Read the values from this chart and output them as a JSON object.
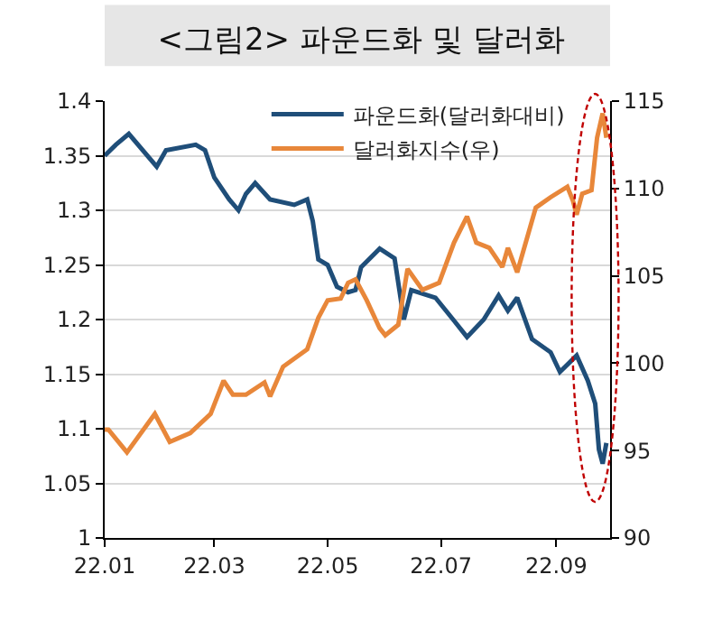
{
  "chart_data": {
    "type": "line",
    "title": "<그림2> 파운드화 및 달러화",
    "xlim": [
      "--01-01",
      "--09-30"
    ],
    "xticks": [
      {
        "value": "--01-01",
        "label": "22.01"
      },
      {
        "value": "--03-01",
        "label": "22.03"
      },
      {
        "value": "--05-01",
        "label": "22.05"
      },
      {
        "value": "--07-01",
        "label": "22.07"
      },
      {
        "value": "--09-01",
        "label": "22.09"
      }
    ],
    "ylim": [
      1,
      1.4
    ],
    "yticks": [
      1,
      1.05,
      1.1,
      1.15,
      1.2,
      1.25,
      1.3,
      1.35,
      1.4
    ],
    "y2lim": [
      90,
      115
    ],
    "y2ticks": [
      90,
      95,
      100,
      105,
      110,
      115
    ],
    "grid": "y",
    "legend": "top right",
    "marker": "none",
    "line_style": "solid",
    "series": [
      {
        "name": "파운드화(달러화대비)",
        "color": "#1f4e79",
        "x": [
          "--01-01",
          "--01-07",
          "--01-14",
          "--01-29",
          "--02-03",
          "--02-19",
          "--02-24",
          "--03-01",
          "--03-09",
          "--03-14",
          "--03-18",
          "--03-23",
          "--03-31",
          "--04-13",
          "--04-20",
          "--04-23",
          "--04-26",
          "--05-01",
          "--05-06",
          "--05-12",
          "--05-16",
          "--05-19",
          "--05-29",
          "--06-06",
          "--06-11",
          "--06-15",
          "--06-28",
          "--07-08",
          "--07-15",
          "--07-24",
          "--08-01",
          "--08-06",
          "--08-11",
          "--08-19",
          "--08-29",
          "--09-03",
          "--09-12",
          "--09-18",
          "--09-22",
          "--09-24",
          "--09-26",
          "--09-28"
        ],
        "values": [
          1.35,
          1.36,
          1.37,
          1.34,
          1.355,
          1.36,
          1.355,
          1.33,
          1.31,
          1.3,
          1.315,
          1.325,
          1.31,
          1.305,
          1.31,
          1.29,
          1.255,
          1.25,
          1.23,
          1.225,
          1.227,
          1.248,
          1.265,
          1.256,
          1.2,
          1.227,
          1.22,
          1.199,
          1.184,
          1.2,
          1.222,
          1.208,
          1.22,
          1.182,
          1.17,
          1.152,
          1.167,
          1.144,
          1.123,
          1.081,
          1.068,
          1.087
        ]
      },
      {
        "name": "달러화지수(우)",
        "color": "#e8873a",
        "axis": "y2",
        "x": [
          "--01-01",
          "--01-03",
          "--01-13",
          "--01-28",
          "--02-05",
          "--02-16",
          "--02-27",
          "--03-06",
          "--03-11",
          "--03-18",
          "--03-28",
          "--03-31",
          "--04-07",
          "--04-20",
          "--04-26",
          "--05-01",
          "--05-08",
          "--05-12",
          "--05-16",
          "--05-22",
          "--05-29",
          "--06-01",
          "--06-08",
          "--06-13",
          "--06-21",
          "--06-30",
          "--07-08",
          "--07-15",
          "--07-20",
          "--07-27",
          "--08-03",
          "--08-06",
          "--08-11",
          "--08-21",
          "--08-29",
          "--09-07",
          "--09-10",
          "--09-12",
          "--09-15",
          "--09-20",
          "--09-23",
          "--09-26",
          "--09-28"
        ],
        "values": [
          96.2,
          96.2,
          94.9,
          97.1,
          95.5,
          96.0,
          97.1,
          99.0,
          98.2,
          98.2,
          98.9,
          98.1,
          99.8,
          100.8,
          102.6,
          103.6,
          103.7,
          104.6,
          104.8,
          103.6,
          102.0,
          101.6,
          102.2,
          105.4,
          104.2,
          104.6,
          106.9,
          108.4,
          106.9,
          106.6,
          105.5,
          106.6,
          105.2,
          108.9,
          109.5,
          110.1,
          109.3,
          108.5,
          109.7,
          109.9,
          112.9,
          114.3,
          112.9
        ]
      }
    ]
  }
}
